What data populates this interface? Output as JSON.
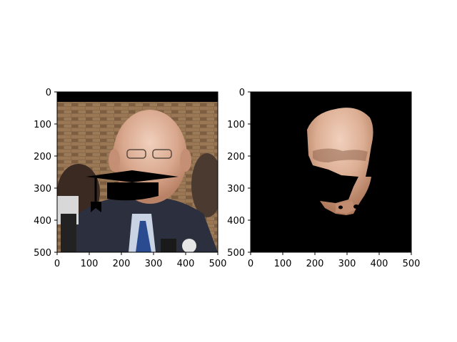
{
  "chart_data": [
    {
      "type": "image",
      "panel": "left",
      "content": "photo of a man in a suit with a black graduation-cap shape overlaid on the lower face",
      "xlim": [
        0,
        500
      ],
      "ylim": [
        500,
        0
      ],
      "x_ticks": [
        0,
        100,
        200,
        300,
        400,
        500
      ],
      "y_ticks": [
        0,
        100,
        200,
        300,
        400,
        500
      ],
      "grid": false
    },
    {
      "type": "image",
      "panel": "right",
      "content": "segmented face mask showing only facial skin region on black background",
      "xlim": [
        0,
        500
      ],
      "ylim": [
        500,
        0
      ],
      "x_ticks": [
        0,
        100,
        200,
        300,
        400,
        500
      ],
      "y_ticks": [
        0,
        100,
        200,
        300,
        400,
        500
      ],
      "grid": false
    }
  ],
  "colors": {
    "background_mask": "#000000",
    "skin": "#d9a88e",
    "suit": "#2c2f3d",
    "brick": "#8a6a4a",
    "tie": "#2a4b8f",
    "shirt": "#c9d3e3"
  }
}
